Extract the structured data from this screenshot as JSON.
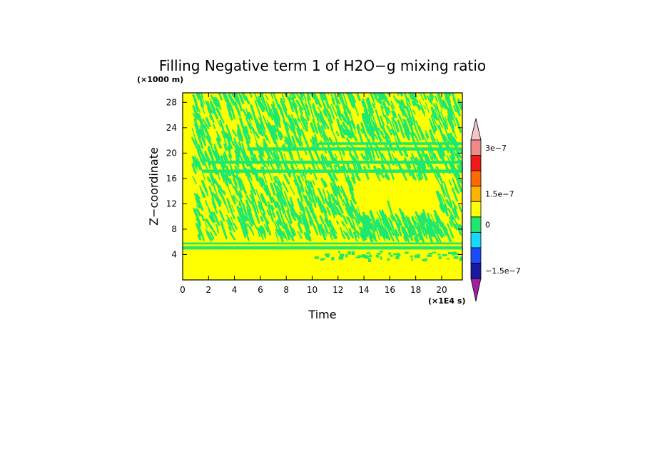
{
  "chart_data": {
    "type": "heatmap",
    "title": "Filling Negative term 1 of H2O−g mixing ratio",
    "xlabel": "Time",
    "ylabel": "Z−coordinate",
    "x_unit": "(×1E4 s)",
    "y_unit": "(×1000 m)",
    "xlim": [
      0,
      21.6
    ],
    "ylim": [
      0,
      29.5
    ],
    "x_ticks": [
      0,
      2,
      4,
      6,
      8,
      10,
      12,
      14,
      16,
      18,
      20
    ],
    "y_ticks": [
      4,
      8,
      12,
      16,
      20,
      24,
      28
    ],
    "colorbar": {
      "ticks": [
        {
          "label": "3e−7",
          "value": 3e-07
        },
        {
          "label": "1.5e−7",
          "value": 1.5e-07
        },
        {
          "label": "0",
          "value": 0
        },
        {
          "label": "−1.5e−7",
          "value": -1.5e-07
        }
      ],
      "colors": [
        "#a020a0",
        "#1a1a9e",
        "#1a4cff",
        "#19d8ff",
        "#1ee86e",
        "#ffff00",
        "#ffb300",
        "#ff6a00",
        "#f01818",
        "#f08a8a",
        "#f5c8c8"
      ],
      "extend": "both"
    },
    "field_description_colors": {
      "background": "#ffff00",
      "streaks": "#1ee86e"
    },
    "bands": [
      {
        "value": "negative",
        "z_min": 4.8,
        "z_max": 5.3,
        "t_min": 0,
        "t_max": 21.6
      },
      {
        "value": "negative",
        "z_min": 5.6,
        "z_max": 5.9,
        "t_min": 0,
        "t_max": 21.6
      },
      {
        "value": "negative",
        "z_min": 16.9,
        "z_max": 17.4,
        "t_min": 1.5,
        "t_max": 21.6
      },
      {
        "value": "negative",
        "z_min": 18.3,
        "z_max": 18.8,
        "t_min": 2.0,
        "t_max": 21.6
      },
      {
        "value": "negative",
        "z_min": 20.4,
        "z_max": 20.9,
        "t_min": 5.0,
        "t_max": 21.6
      },
      {
        "value": "negative",
        "z_min": 21.3,
        "z_max": 21.7,
        "t_min": 10.5,
        "t_max": 21.6
      }
    ]
  }
}
